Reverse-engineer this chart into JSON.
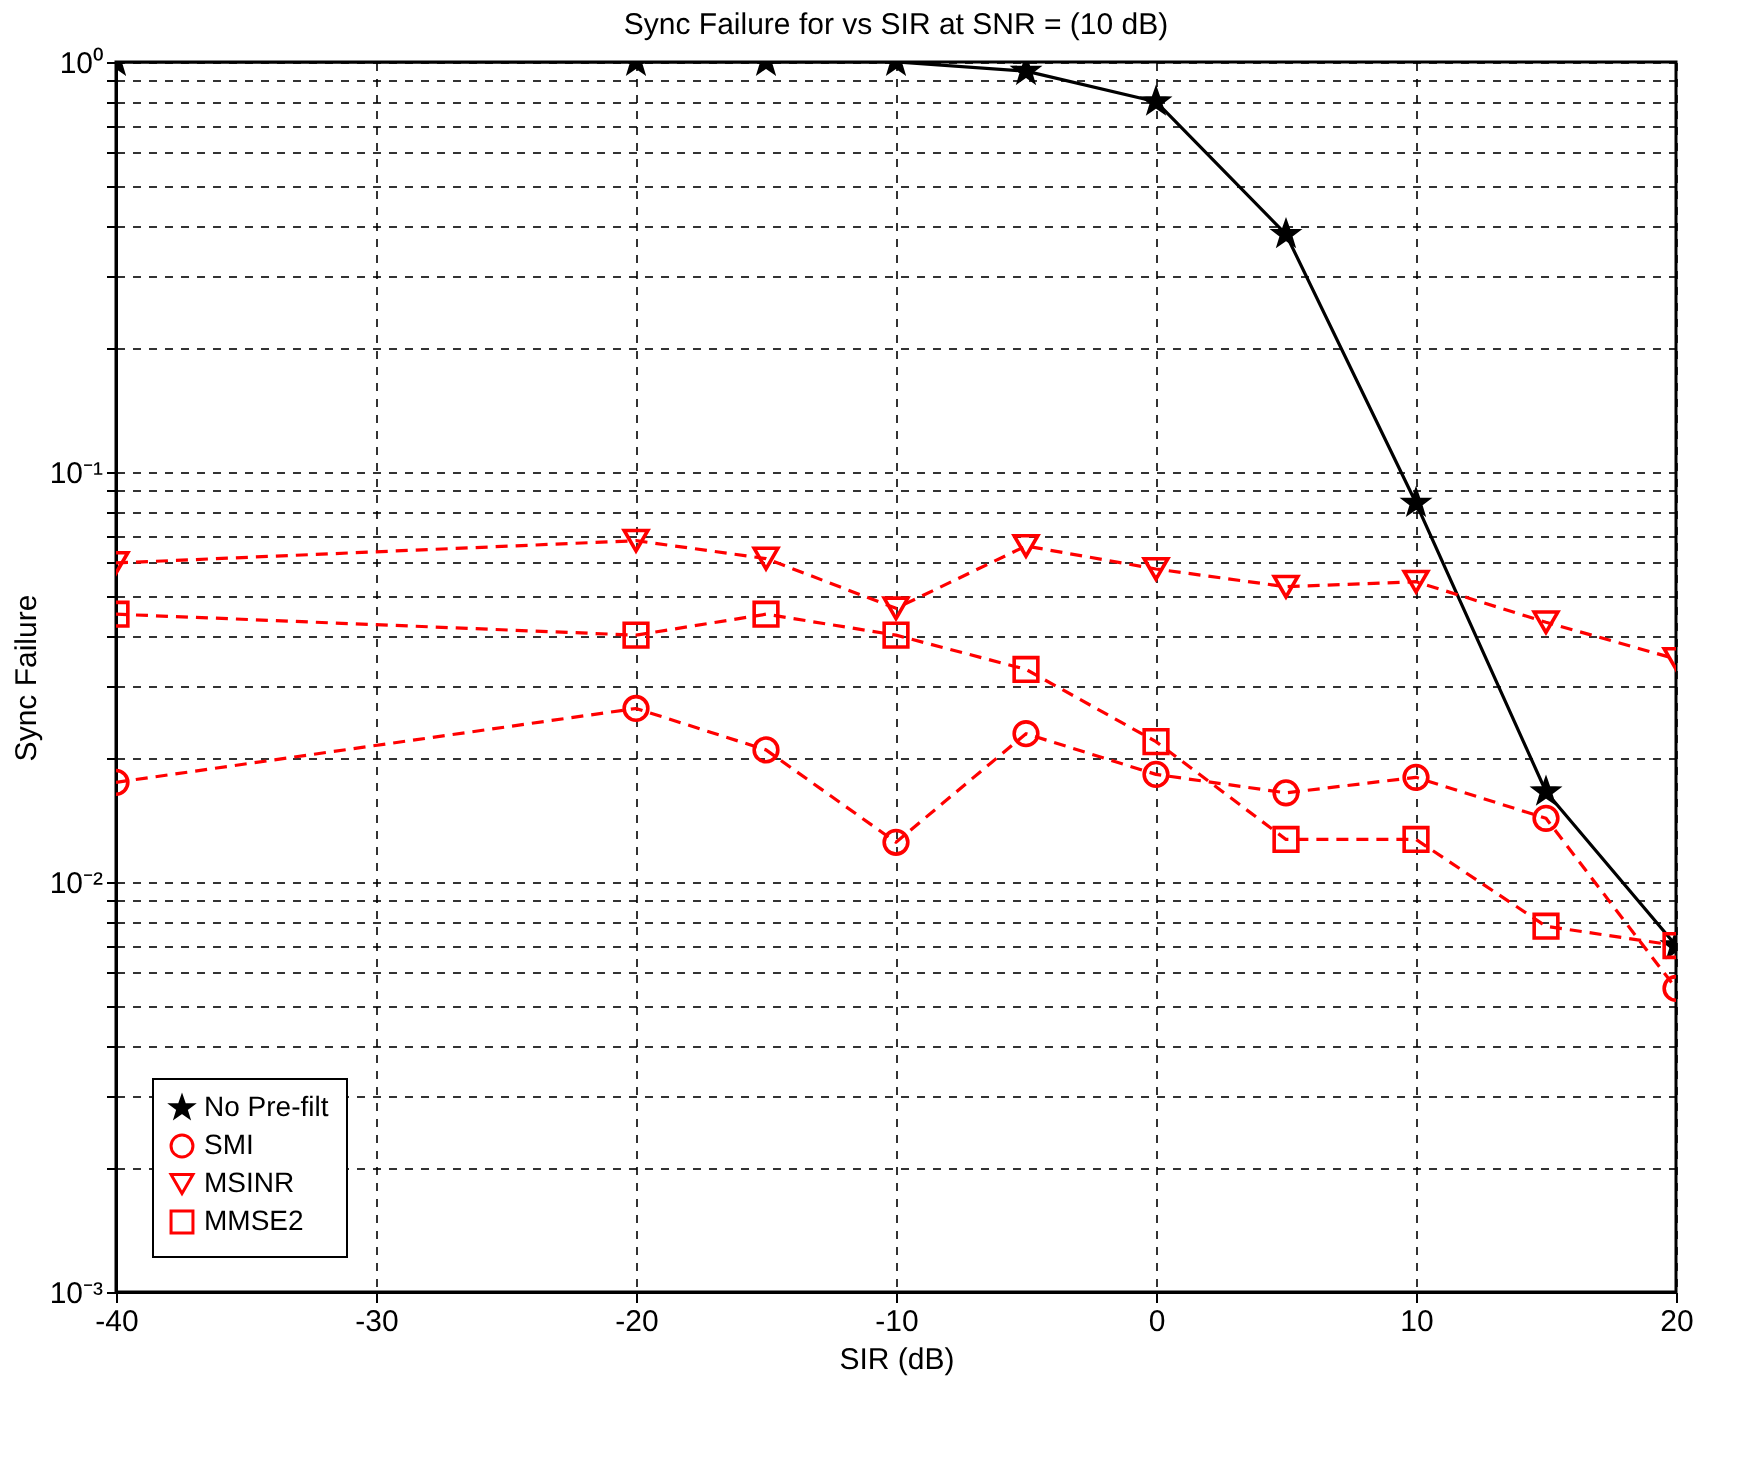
{
  "chart_data": {
    "type": "line",
    "title": "Sync Failure for vs SIR at SNR = (10 dB)",
    "xlabel": "SIR (dB)",
    "ylabel": "Sync Failure",
    "x": [
      -40,
      -20,
      -15,
      -10,
      -5,
      0,
      5,
      10,
      15,
      20
    ],
    "series": [
      {
        "name": "No Pre-filt",
        "color": "#000000",
        "marker": "star",
        "line_style": "solid",
        "values": [
          1.0,
          1.0,
          1.0,
          1.0,
          0.95,
          0.8,
          0.38,
          0.084,
          0.0166,
          0.007
        ]
      },
      {
        "name": "SMI",
        "color": "#ff0000",
        "marker": "circle",
        "line_style": "dashed",
        "values": [
          0.0175,
          0.0265,
          0.021,
          0.0125,
          0.023,
          0.0183,
          0.0165,
          0.018,
          0.0143,
          0.0055
        ]
      },
      {
        "name": "MSINR",
        "color": "#ff0000",
        "marker": "triangle",
        "line_style": "dashed",
        "values": [
          0.06,
          0.068,
          0.0615,
          0.0465,
          0.066,
          0.058,
          0.0525,
          0.054,
          0.043,
          0.035
        ]
      },
      {
        "name": "MMSE2",
        "color": "#ff0000",
        "marker": "square",
        "line_style": "dashed",
        "values": [
          0.045,
          0.04,
          0.045,
          0.04,
          0.033,
          0.022,
          0.0127,
          0.0127,
          0.0078,
          0.007
        ]
      }
    ],
    "log": true,
    "xlim": [
      -40,
      20
    ],
    "xticks": [
      -40,
      -30,
      -20,
      -10,
      0,
      10,
      20
    ],
    "ylim": [
      0.001,
      1
    ],
    "yticks": [
      {
        "value": 0.001,
        "label": "10⁻³"
      },
      {
        "value": 0.002,
        "label": null
      },
      {
        "value": 0.003,
        "label": null
      },
      {
        "value": 0.004,
        "label": null
      },
      {
        "value": 0.005,
        "label": null
      },
      {
        "value": 0.006,
        "label": null
      },
      {
        "value": 0.007,
        "label": null
      },
      {
        "value": 0.008,
        "label": null
      },
      {
        "value": 0.009,
        "label": null
      },
      {
        "value": 0.01,
        "label": "10⁻²"
      },
      {
        "value": 0.02,
        "label": null
      },
      {
        "value": 0.03,
        "label": null
      },
      {
        "value": 0.04,
        "label": null
      },
      {
        "value": 0.05,
        "label": null
      },
      {
        "value": 0.06,
        "label": null
      },
      {
        "value": 0.07,
        "label": null
      },
      {
        "value": 0.08,
        "label": null
      },
      {
        "value": 0.09,
        "label": null
      },
      {
        "value": 0.1,
        "label": "10⁻¹"
      },
      {
        "value": 0.2,
        "label": null
      },
      {
        "value": 0.3,
        "label": null
      },
      {
        "value": 0.4,
        "label": null
      },
      {
        "value": 0.5,
        "label": null
      },
      {
        "value": 0.6,
        "label": null
      },
      {
        "value": 0.7,
        "label": null
      },
      {
        "value": 0.8,
        "label": null
      },
      {
        "value": 0.9,
        "label": null
      },
      {
        "value": 1,
        "label": "10⁰"
      }
    ],
    "grid": true,
    "legend": "bottom left"
  }
}
